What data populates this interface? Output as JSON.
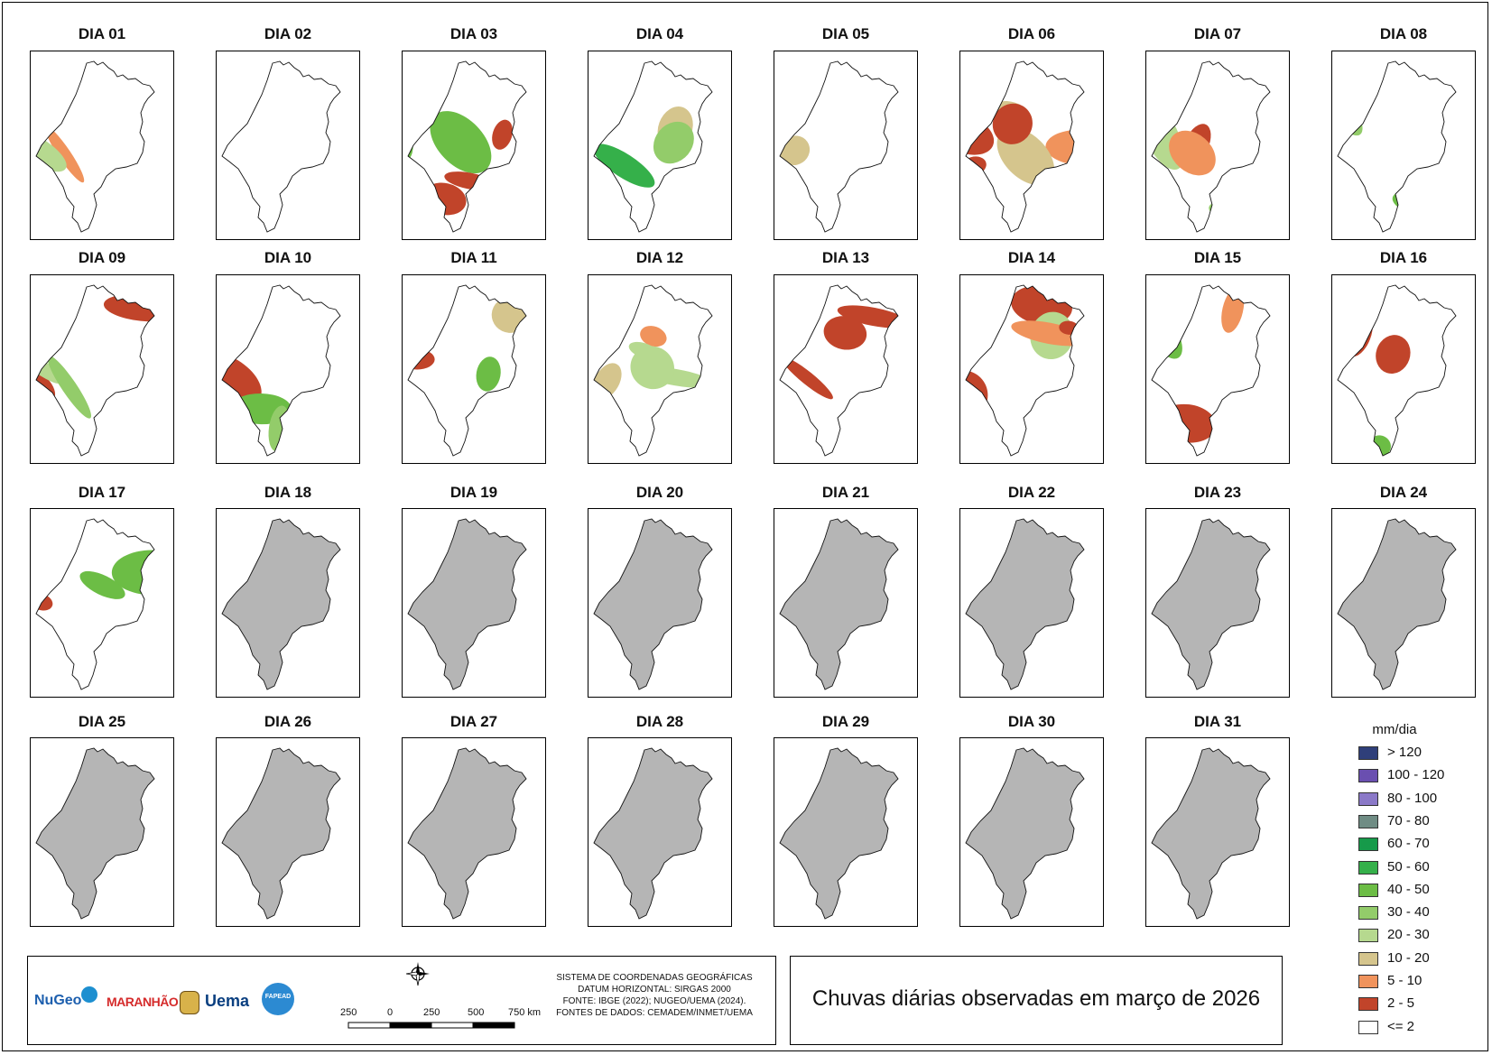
{
  "title": "Chuvas diárias observadas em março de 2026",
  "days": [
    {
      "label": "DIA 01",
      "status": "observed"
    },
    {
      "label": "DIA 02",
      "status": "observed"
    },
    {
      "label": "DIA 03",
      "status": "observed"
    },
    {
      "label": "DIA 04",
      "status": "observed"
    },
    {
      "label": "DIA 05",
      "status": "observed"
    },
    {
      "label": "DIA 06",
      "status": "observed"
    },
    {
      "label": "DIA 07",
      "status": "observed"
    },
    {
      "label": "DIA 08",
      "status": "observed"
    },
    {
      "label": "DIA 09",
      "status": "observed"
    },
    {
      "label": "DIA 10",
      "status": "observed"
    },
    {
      "label": "DIA 11",
      "status": "observed"
    },
    {
      "label": "DIA 12",
      "status": "observed"
    },
    {
      "label": "DIA 13",
      "status": "observed"
    },
    {
      "label": "DIA 14",
      "status": "observed"
    },
    {
      "label": "DIA 15",
      "status": "observed"
    },
    {
      "label": "DIA 16",
      "status": "observed"
    },
    {
      "label": "DIA 17",
      "status": "observed"
    },
    {
      "label": "DIA 18",
      "status": "no-data"
    },
    {
      "label": "DIA 19",
      "status": "no-data"
    },
    {
      "label": "DIA 20",
      "status": "no-data"
    },
    {
      "label": "DIA 21",
      "status": "no-data"
    },
    {
      "label": "DIA 22",
      "status": "no-data"
    },
    {
      "label": "DIA 23",
      "status": "no-data"
    },
    {
      "label": "DIA 24",
      "status": "no-data"
    },
    {
      "label": "DIA 25",
      "status": "no-data"
    },
    {
      "label": "DIA 26",
      "status": "no-data"
    },
    {
      "label": "DIA 27",
      "status": "no-data"
    },
    {
      "label": "DIA 28",
      "status": "no-data"
    },
    {
      "label": "DIA 29",
      "status": "no-data"
    },
    {
      "label": "DIA 30",
      "status": "no-data"
    },
    {
      "label": "DIA 31",
      "status": "no-data"
    }
  ],
  "legend": {
    "title": "mm/dia",
    "items": [
      {
        "label": "> 120",
        "color": "#2f3f7a"
      },
      {
        "label": "100 - 120",
        "color": "#6a4fb0"
      },
      {
        "label": "80 - 100",
        "color": "#8b79c8"
      },
      {
        "label": "70 - 80",
        "color": "#6f8c84"
      },
      {
        "label": "60 - 70",
        "color": "#169a4a"
      },
      {
        "label": "50 - 60",
        "color": "#35b04a"
      },
      {
        "label": "40 - 50",
        "color": "#6cbd45"
      },
      {
        "label": "30 - 40",
        "color": "#93cc6a"
      },
      {
        "label": "20 - 30",
        "color": "#b6d98f"
      },
      {
        "label": "10 - 20",
        "color": "#d5c58d"
      },
      {
        "label": "5 - 10",
        "color": "#f0935c"
      },
      {
        "label": "2 - 5",
        "color": "#c1442a"
      },
      {
        "label": "<= 2",
        "color": "#ffffff"
      }
    ]
  },
  "no_data_color": "#b5b5b5",
  "crs": {
    "line1": "SISTEMA DE COORDENADAS GEOGRÁFICAS",
    "line2": "DATUM HORIZONTAL: SIRGAS 2000",
    "line3": "FONTE: IBGE (2022); NUGEO/UEMA (2024).",
    "line4": "FONTES DE DADOS: CEMADEM/INMET/UEMA"
  },
  "scale": {
    "labels": [
      "250",
      "0",
      "250",
      "500",
      "750 km"
    ]
  },
  "logos": {
    "nugeo": "NuGeo",
    "maranhao": "MARANHÃO",
    "uema": "Uema",
    "fapema": "FAPEAD"
  }
}
